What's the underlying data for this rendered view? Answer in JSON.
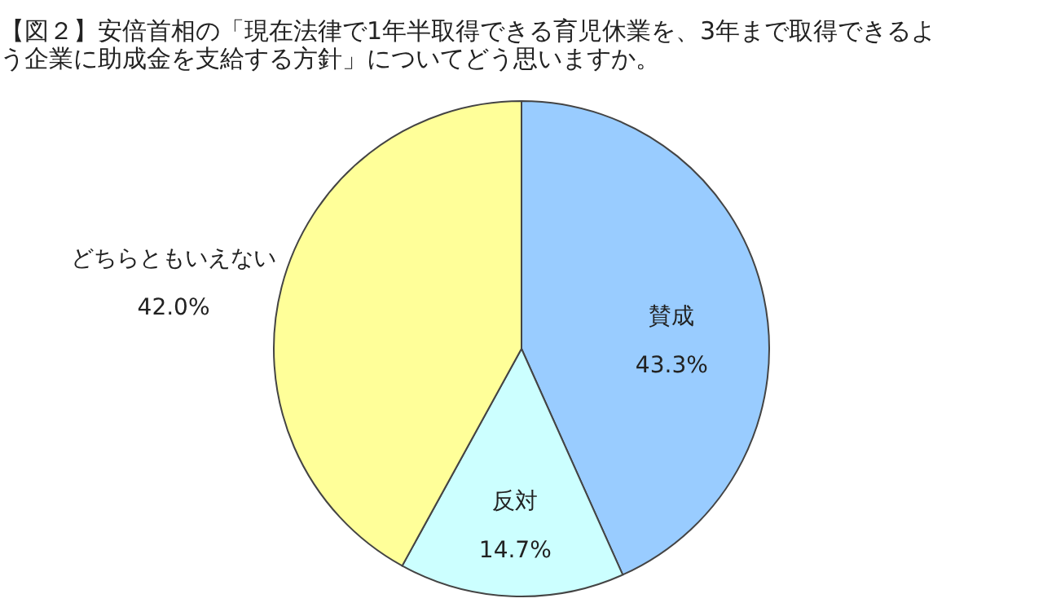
{
  "chart_data": {
    "type": "pie",
    "title": "【図２】安倍首相の「現在法律で1年半取得できる育児休業を、3年まで取得できるよう企業に助成金を支給する方針」についてどう思いますか。",
    "categories": [
      "賛成",
      "反対",
      "どちらともいえない"
    ],
    "values": [
      43.3,
      14.7,
      42.0
    ],
    "value_labels": [
      "43.3%",
      "14.7%",
      "42.0%"
    ],
    "colors": [
      "#99ccff",
      "#ccffff",
      "#ffff99"
    ]
  }
}
